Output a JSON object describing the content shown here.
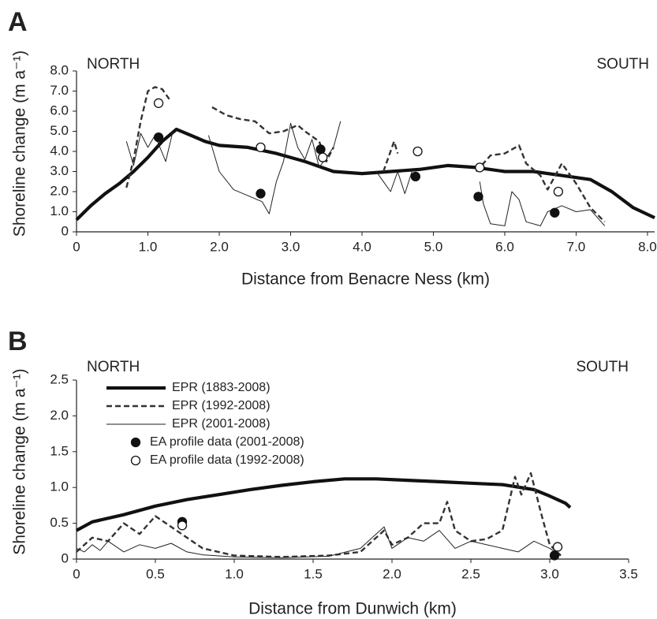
{
  "chart_data": [
    {
      "type": "line",
      "label": "A",
      "annotations": [
        "NORTH",
        "SOUTH"
      ],
      "xlabel": "Distance from Benacre Ness (km)",
      "ylabel": "Shoreline change (m a⁻¹)",
      "xlim": [
        0,
        8.1
      ],
      "ylim": [
        0,
        8
      ],
      "xticks": [
        0,
        {
          "value": 1,
          "label": "1.0"
        },
        {
          "value": 2,
          "label": "2.0"
        },
        {
          "value": 3,
          "label": "3.0"
        },
        {
          "value": 4,
          "label": "4.0"
        },
        {
          "value": 5,
          "label": "5.0"
        },
        {
          "value": 6,
          "label": "6.0"
        },
        {
          "value": 7,
          "label": "7.0"
        },
        {
          "value": 8,
          "label": "8.0"
        }
      ],
      "yticks": [
        0,
        {
          "value": 1,
          "label": "1.0"
        },
        {
          "value": 2,
          "label": "2.0"
        },
        {
          "value": 3,
          "label": "3.0"
        },
        {
          "value": 4,
          "label": "4.0"
        },
        {
          "value": 5,
          "label": "5.0"
        },
        {
          "value": 6,
          "label": "6.0"
        },
        {
          "value": 7,
          "label": "7.0"
        },
        {
          "value": 8,
          "label": "8.0"
        }
      ],
      "series": [
        {
          "style": "thick",
          "color": "#111",
          "x": [
            0,
            0.2,
            0.4,
            0.6,
            0.8,
            1.0,
            1.2,
            1.4,
            1.6,
            1.8,
            2.0,
            2.4,
            2.8,
            3.2,
            3.6,
            4.0,
            4.4,
            4.8,
            5.2,
            5.6,
            6.0,
            6.4,
            6.8,
            7.2,
            7.5,
            7.8,
            8.1
          ],
          "values": [
            0.6,
            1.3,
            1.9,
            2.4,
            3.0,
            3.7,
            4.5,
            5.1,
            4.8,
            4.5,
            4.3,
            4.2,
            3.9,
            3.5,
            3.0,
            2.9,
            3.0,
            3.1,
            3.3,
            3.2,
            3.0,
            3.0,
            2.8,
            2.6,
            2.0,
            1.2,
            0.7
          ]
        },
        {
          "style": "dashed",
          "color": "#333",
          "x": [
            0.7,
            0.8,
            0.9,
            1.0,
            1.1,
            1.2,
            1.3,
            1.5,
            1.9,
            2.1,
            2.3,
            2.5,
            2.7,
            2.9,
            3.1,
            3.2,
            3.4,
            3.5,
            3.6,
            3.65,
            4.3,
            4.45,
            4.5,
            4.55,
            5.6,
            5.8,
            6.0,
            6.2,
            6.3,
            6.5,
            6.6,
            6.8,
            7.0,
            7.2,
            7.4
          ],
          "values": [
            2.2,
            3.6,
            5.5,
            7.0,
            7.2,
            7.1,
            6.6,
            null,
            6.2,
            5.8,
            5.6,
            5.5,
            4.9,
            5.0,
            5.3,
            5.0,
            4.5,
            3.5,
            4.2,
            null,
            3.0,
            4.5,
            3.9,
            null,
            3.0,
            3.8,
            3.9,
            4.3,
            3.4,
            2.8,
            2.1,
            3.4,
            2.4,
            1.2,
            0.5
          ]
        },
        {
          "style": "thin",
          "color": "#222",
          "x": [
            0.7,
            0.8,
            0.9,
            1.0,
            1.1,
            1.25,
            1.35,
            1.5,
            1.85,
            2.0,
            2.2,
            2.4,
            2.6,
            2.7,
            2.8,
            2.9,
            3.0,
            3.1,
            3.2,
            3.3,
            3.4,
            3.6,
            3.7,
            3.8,
            4.2,
            4.3,
            4.4,
            4.5,
            4.6,
            4.7,
            4.8,
            5.65,
            5.7,
            5.8,
            6.0,
            6.1,
            6.2,
            6.3,
            6.5,
            6.6,
            6.8,
            7.0,
            7.2,
            7.4
          ],
          "values": [
            4.5,
            3.3,
            4.9,
            4.2,
            4.8,
            3.5,
            5.0,
            null,
            4.8,
            3.0,
            2.1,
            1.8,
            1.5,
            0.9,
            2.5,
            3.5,
            5.4,
            4.2,
            3.6,
            4.6,
            3.2,
            4.2,
            5.5,
            null,
            3.0,
            2.5,
            2.0,
            3.0,
            1.9,
            3.0,
            null,
            2.5,
            1.4,
            0.4,
            0.3,
            2.0,
            1.6,
            0.5,
            0.3,
            1.0,
            1.3,
            1.0,
            1.1,
            0.3
          ]
        },
        {
          "style": "filled-dot",
          "color": "#111",
          "x": [
            1.15,
            2.58,
            3.42,
            4.75,
            5.63,
            6.7
          ],
          "values": [
            4.7,
            1.9,
            4.1,
            2.75,
            1.75,
            0.95
          ]
        },
        {
          "style": "open-dot",
          "color": "#111",
          "x": [
            1.15,
            2.58,
            3.45,
            4.78,
            5.65,
            6.75
          ],
          "values": [
            6.4,
            4.2,
            3.7,
            4.0,
            3.2,
            2.0
          ]
        }
      ]
    },
    {
      "type": "line",
      "label": "B",
      "annotations": [
        "NORTH",
        "SOUTH"
      ],
      "xlabel": "Distance from Dunwich (km)",
      "ylabel": "Shoreline change (m a⁻¹)",
      "xlim": [
        0,
        3.5
      ],
      "ylim": [
        0,
        2.5
      ],
      "legend": "upper left",
      "xticks": [
        0,
        0.5,
        {
          "value": 1,
          "label": "1.0"
        },
        1.5,
        {
          "value": 2,
          "label": "2.0"
        },
        2.5,
        {
          "value": 3,
          "label": "3.0"
        },
        3.5
      ],
      "yticks": [
        0,
        0.5,
        {
          "value": 1,
          "label": "1.0"
        },
        1.5,
        {
          "value": 2,
          "label": "2.0"
        },
        2.5
      ],
      "series": [
        {
          "name": "EPR (1883-2008)",
          "style": "thick",
          "color": "#111",
          "x": [
            0,
            0.1,
            0.3,
            0.5,
            0.7,
            0.9,
            1.1,
            1.3,
            1.5,
            1.7,
            1.9,
            2.1,
            2.3,
            2.5,
            2.7,
            2.9,
            3.0,
            3.1,
            3.13
          ],
          "values": [
            0.4,
            0.52,
            0.62,
            0.74,
            0.83,
            0.9,
            0.97,
            1.03,
            1.08,
            1.12,
            1.12,
            1.1,
            1.08,
            1.06,
            1.04,
            0.97,
            0.88,
            0.78,
            0.72
          ]
        },
        {
          "name": "EPR (1992-2008)",
          "style": "dashed",
          "color": "#333",
          "x": [
            0,
            0.1,
            0.2,
            0.3,
            0.4,
            0.5,
            0.6,
            0.7,
            0.8,
            1.0,
            1.3,
            1.6,
            1.8,
            1.95,
            2.0,
            2.1,
            2.2,
            2.3,
            2.35,
            2.4,
            2.5,
            2.6,
            2.7,
            2.78,
            2.82,
            2.88,
            2.95,
            3.0,
            3.07
          ],
          "values": [
            0.1,
            0.3,
            0.25,
            0.5,
            0.35,
            0.6,
            0.45,
            0.3,
            0.15,
            0.05,
            0.03,
            0.05,
            0.1,
            0.4,
            0.2,
            0.3,
            0.5,
            0.5,
            0.8,
            0.4,
            0.25,
            0.28,
            0.4,
            1.15,
            0.9,
            1.2,
            0.6,
            0.2,
            0.05
          ]
        },
        {
          "name": "EPR (2001-2008)",
          "style": "thin",
          "color": "#222",
          "x": [
            0,
            0.05,
            0.1,
            0.15,
            0.2,
            0.3,
            0.4,
            0.5,
            0.6,
            0.7,
            0.8,
            1.0,
            1.3,
            1.6,
            1.8,
            1.95,
            2.0,
            2.1,
            2.2,
            2.3,
            2.4,
            2.5,
            2.7,
            2.8,
            2.9,
            3.0,
            3.07
          ],
          "values": [
            0.15,
            0.1,
            0.2,
            0.12,
            0.25,
            0.1,
            0.2,
            0.15,
            0.22,
            0.1,
            0.06,
            0.03,
            0.02,
            0.04,
            0.15,
            0.45,
            0.15,
            0.3,
            0.25,
            0.4,
            0.15,
            0.25,
            0.15,
            0.1,
            0.25,
            0.15,
            0.05
          ]
        },
        {
          "name": "EA profile data (2001-2008)",
          "style": "filled-dot",
          "color": "#111",
          "x": [
            0.67,
            3.03
          ],
          "values": [
            0.52,
            0.05
          ]
        },
        {
          "name": "EA profile data (1992-2008)",
          "style": "open-dot",
          "color": "#111",
          "x": [
            0.67,
            3.05
          ],
          "values": [
            0.47,
            0.17
          ]
        }
      ]
    }
  ]
}
